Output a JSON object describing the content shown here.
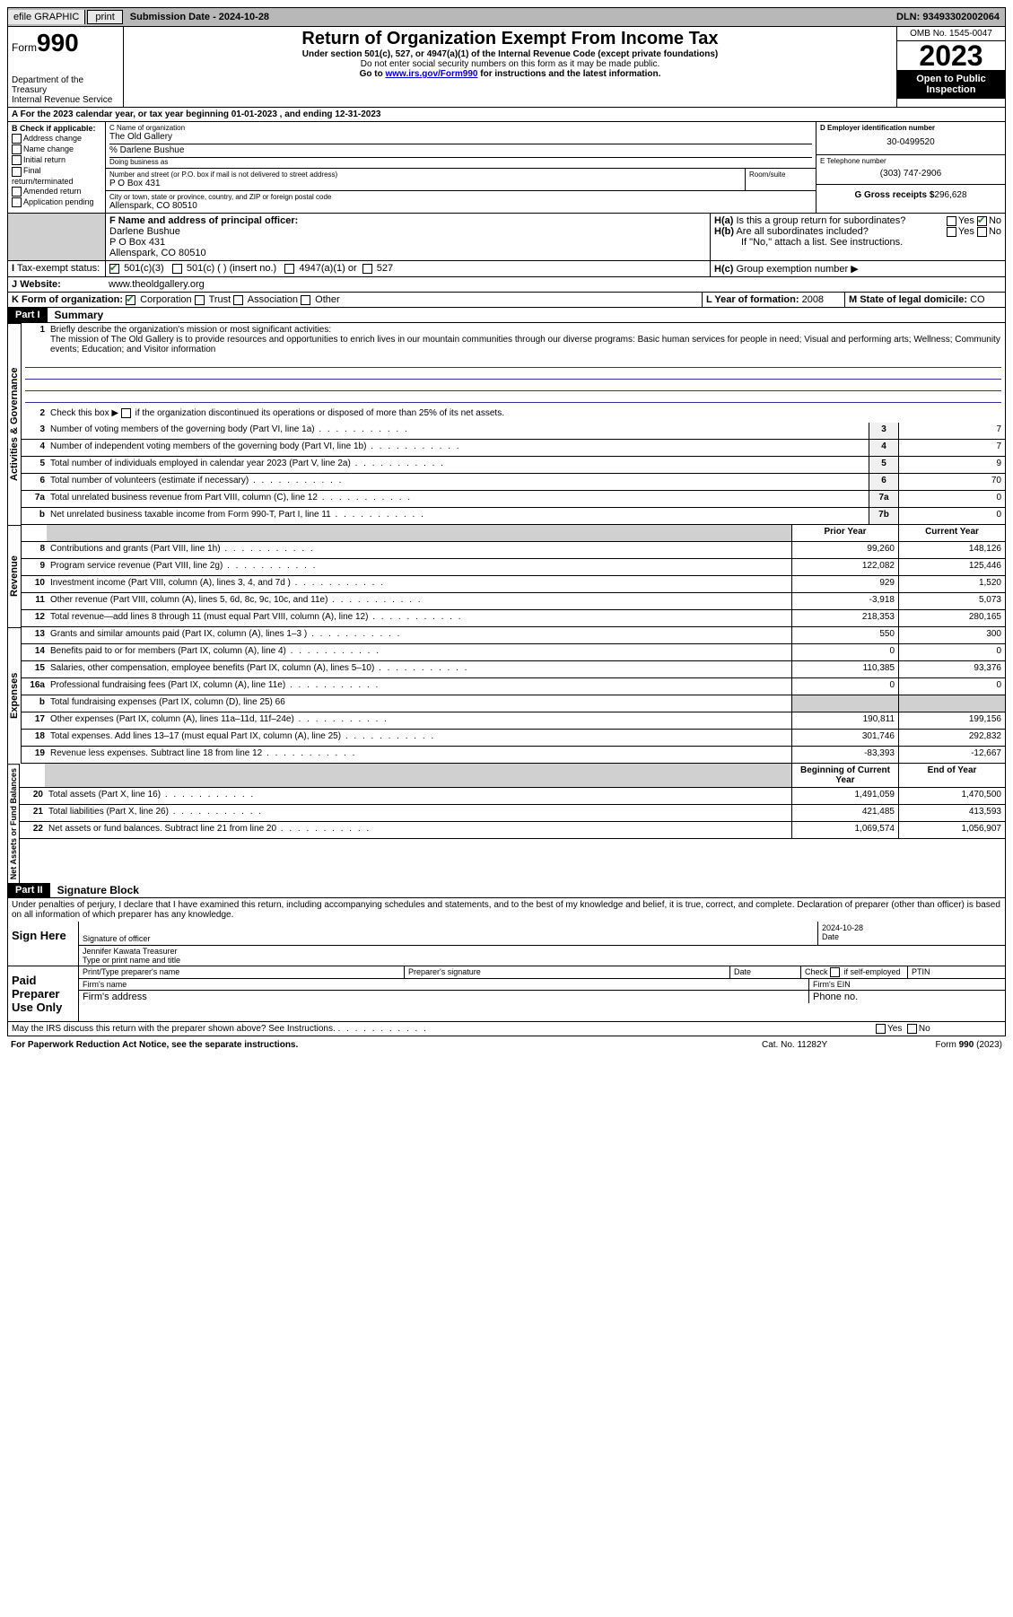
{
  "topbar": {
    "efile": "efile GRAPHIC",
    "print": "print",
    "submission_label": "Submission Date - 2024-10-28",
    "dln": "DLN: 93493302002064"
  },
  "header": {
    "form_word": "Form",
    "form_num": "990",
    "dept": "Department of the Treasury\nInternal Revenue Service",
    "title": "Return of Organization Exempt From Income Tax",
    "subtitle": "Under section 501(c), 527, or 4947(a)(1) of the Internal Revenue Code (except private foundations)",
    "note1": "Do not enter social security numbers on this form as it may be made public.",
    "note2": "Go to www.irs.gov/Form990 for instructions and the latest information.",
    "omb": "OMB No. 1545-0047",
    "year": "2023",
    "open": "Open to Public Inspection"
  },
  "section_a": "A For the 2023 calendar year, or tax year beginning 01-01-2023   , and ending 12-31-2023",
  "col_b": {
    "header": "B Check if applicable:",
    "items": [
      "Address change",
      "Name change",
      "Initial return",
      "Final return/terminated",
      "Amended return",
      "Application pending"
    ]
  },
  "col_c": {
    "name_label": "C Name of organization",
    "name": "The Old Gallery",
    "care_of": "% Darlene Bushue",
    "dba_label": "Doing business as",
    "street_label": "Number and street (or P.O. box if mail is not delivered to street address)",
    "room_label": "Room/suite",
    "street": "P O Box 431",
    "city_label": "City or town, state or province, country, and ZIP or foreign postal code",
    "city": "Allenspark, CO  80510"
  },
  "col_d": {
    "ein_label": "D Employer identification number",
    "ein": "30-0499520",
    "phone_label": "E Telephone number",
    "phone": "(303) 747-2906",
    "gross_label": "G Gross receipts $",
    "gross": "296,628"
  },
  "row_f": {
    "label": "F Name and address of principal officer:",
    "name": "Darlene Bushue",
    "addr1": "P O Box 431",
    "addr2": "Allenspark, CO  80510"
  },
  "row_h": {
    "ha": "H(a)  Is this a group return for subordinates?",
    "hb": "H(b)  Are all subordinates included?",
    "hb_note": "If \"No,\" attach a list. See instructions.",
    "hc": "H(c)  Group exemption number ",
    "yes": "Yes",
    "no": "No"
  },
  "row_i": {
    "label": "Tax-exempt status:",
    "opt1": "501(c)(3)",
    "opt2": "501(c) (  ) (insert no.)",
    "opt3": "4947(a)(1) or",
    "opt4": "527"
  },
  "row_j": {
    "label": "Website: ",
    "value": "www.theoldgallery.org"
  },
  "row_k": {
    "label": "K Form of organization:",
    "opts": [
      "Corporation",
      "Trust",
      "Association",
      "Other"
    ]
  },
  "row_l": {
    "label": "L Year of formation:",
    "value": "2008"
  },
  "row_m": {
    "label": "M State of legal domicile:",
    "value": "CO"
  },
  "part1": {
    "tag": "Part I",
    "title": "Summary",
    "q1_label": "Briefly describe the organization's mission or most significant activities:",
    "q1_text": "The mission of The Old Gallery is to provide resources and opportunities to enrich lives in our mountain communities through our diverse programs: Basic human services for people in need; Visual and performing arts; Wellness; Community events; Education; and Visitor information",
    "q2": "Check this box      if the organization discontinued its operations or disposed of more than 25% of its net assets.",
    "vlabels": {
      "gov": "Activities & Governance",
      "rev": "Revenue",
      "exp": "Expenses",
      "net": "Net Assets or Fund Balances"
    },
    "col_headers": {
      "prior": "Prior Year",
      "current": "Current Year",
      "begin": "Beginning of Current Year",
      "end": "End of Year"
    },
    "rows_gov": [
      {
        "n": "3",
        "label": "Number of voting members of the governing body (Part VI, line 1a)",
        "box": "3",
        "val": "7"
      },
      {
        "n": "4",
        "label": "Number of independent voting members of the governing body (Part VI, line 1b)",
        "box": "4",
        "val": "7"
      },
      {
        "n": "5",
        "label": "Total number of individuals employed in calendar year 2023 (Part V, line 2a)",
        "box": "5",
        "val": "9"
      },
      {
        "n": "6",
        "label": "Total number of volunteers (estimate if necessary)",
        "box": "6",
        "val": "70"
      },
      {
        "n": "7a",
        "label": "Total unrelated business revenue from Part VIII, column (C), line 12",
        "box": "7a",
        "val": "0"
      },
      {
        "n": "b",
        "label": "Net unrelated business taxable income from Form 990-T, Part I, line 11",
        "box": "7b",
        "val": "0"
      }
    ],
    "rows_rev": [
      {
        "n": "8",
        "label": "Contributions and grants (Part VIII, line 1h)",
        "prior": "99,260",
        "cur": "148,126"
      },
      {
        "n": "9",
        "label": "Program service revenue (Part VIII, line 2g)",
        "prior": "122,082",
        "cur": "125,446"
      },
      {
        "n": "10",
        "label": "Investment income (Part VIII, column (A), lines 3, 4, and 7d )",
        "prior": "929",
        "cur": "1,520"
      },
      {
        "n": "11",
        "label": "Other revenue (Part VIII, column (A), lines 5, 6d, 8c, 9c, 10c, and 11e)",
        "prior": "-3,918",
        "cur": "5,073"
      },
      {
        "n": "12",
        "label": "Total revenue—add lines 8 through 11 (must equal Part VIII, column (A), line 12)",
        "prior": "218,353",
        "cur": "280,165"
      }
    ],
    "rows_exp": [
      {
        "n": "13",
        "label": "Grants and similar amounts paid (Part IX, column (A), lines 1–3 )",
        "prior": "550",
        "cur": "300"
      },
      {
        "n": "14",
        "label": "Benefits paid to or for members (Part IX, column (A), line 4)",
        "prior": "0",
        "cur": "0"
      },
      {
        "n": "15",
        "label": "Salaries, other compensation, employee benefits (Part IX, column (A), lines 5–10)",
        "prior": "110,385",
        "cur": "93,376"
      },
      {
        "n": "16a",
        "label": "Professional fundraising fees (Part IX, column (A), line 11e)",
        "prior": "0",
        "cur": "0"
      },
      {
        "n": "b",
        "label": "Total fundraising expenses (Part IX, column (D), line 25) 66",
        "prior": "",
        "cur": ""
      },
      {
        "n": "17",
        "label": "Other expenses (Part IX, column (A), lines 11a–11d, 11f–24e)",
        "prior": "190,811",
        "cur": "199,156"
      },
      {
        "n": "18",
        "label": "Total expenses. Add lines 13–17 (must equal Part IX, column (A), line 25)",
        "prior": "301,746",
        "cur": "292,832"
      },
      {
        "n": "19",
        "label": "Revenue less expenses. Subtract line 18 from line 12",
        "prior": "-83,393",
        "cur": "-12,667"
      }
    ],
    "rows_net": [
      {
        "n": "20",
        "label": "Total assets (Part X, line 16)",
        "prior": "1,491,059",
        "cur": "1,470,500"
      },
      {
        "n": "21",
        "label": "Total liabilities (Part X, line 26)",
        "prior": "421,485",
        "cur": "413,593"
      },
      {
        "n": "22",
        "label": "Net assets or fund balances. Subtract line 21 from line 20",
        "prior": "1,069,574",
        "cur": "1,056,907"
      }
    ]
  },
  "part2": {
    "tag": "Part II",
    "title": "Signature Block",
    "perjury": "Under penalties of perjury, I declare that I have examined this return, including accompanying schedules and statements, and to the best of my knowledge and belief, it is true, correct, and complete. Declaration of preparer (other than officer) is based on all information of which preparer has any knowledge.",
    "sign_here": "Sign Here",
    "sig_officer": "Signature of officer",
    "sig_name": "Jennifer Kawata  Treasurer",
    "sig_type": "Type or print name and title",
    "date_label": "Date",
    "date_val": "2024-10-28",
    "paid": "Paid Preparer Use Only",
    "prep_name": "Print/Type preparer's name",
    "prep_sig": "Preparer's signature",
    "prep_date": "Date",
    "prep_check": "Check       if self-employed",
    "ptin": "PTIN",
    "firm_name": "Firm's name  ",
    "firm_ein": "Firm's EIN  ",
    "firm_addr": "Firm's address  ",
    "phone": "Phone no."
  },
  "footer": {
    "discuss": "May the IRS discuss this return with the preparer shown above? See Instructions.",
    "paperwork": "For Paperwork Reduction Act Notice, see the separate instructions.",
    "cat": "Cat. No. 11282Y",
    "formref": "Form 990 (2023)"
  }
}
